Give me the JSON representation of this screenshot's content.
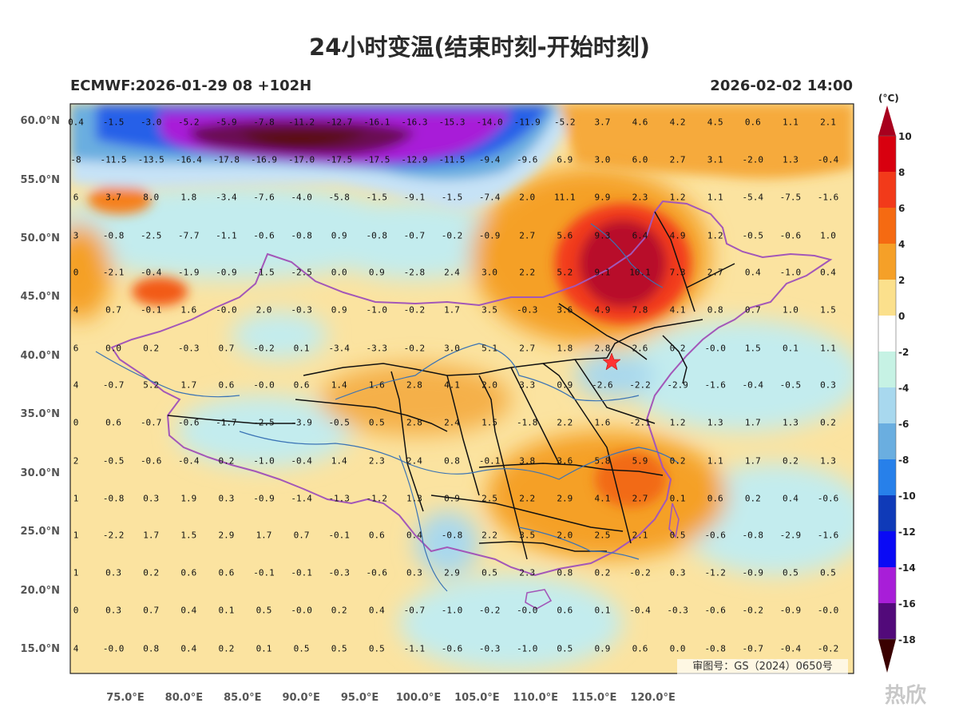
{
  "title": "24小时变温(结束时刻-开始时刻)",
  "subtitle_left": "ECMWF:2026-01-29 08 +102H",
  "subtitle_right": "2026-02-02 14:00",
  "unit": "(°C)",
  "approval": "审图号：GS（2024）0650号",
  "watermark": "热欣",
  "colors": {
    "dark_red": "#5a0a0a",
    "red": "#e4141e",
    "orange": "#f5a028",
    "yellow": "#fae39a",
    "cyan": "#c6f2e4",
    "light_blue": "#a8d8ee",
    "blue": "#2266e0",
    "purple": "#a81ed8",
    "border_purple": "#a357b8",
    "province_black": "#111111",
    "river": "#3a73b5"
  },
  "lat_labels": [
    "60.0°N",
    "55.0°N",
    "50.0°N",
    "45.0°N",
    "40.0°N",
    "35.0°N",
    "30.0°N",
    "25.0°N",
    "20.0°N",
    "15.0°N"
  ],
  "lon_labels": [
    "75.0°E",
    "80.0°E",
    "85.0°E",
    "90.0°E",
    "95.0°E",
    "100.0°E",
    "105.0°E",
    "110.0°E",
    "115.0°E",
    "120.0°E"
  ],
  "colorbar": {
    "levels": [
      "10",
      "8",
      "6",
      "4",
      "2",
      "0",
      "-2",
      "-4",
      "-6",
      "-8",
      "-10",
      "-12",
      "-14",
      "-16",
      "-18"
    ],
    "colors": [
      "#a8001e",
      "#d8000f",
      "#f23a1a",
      "#f56a12",
      "#f5a028",
      "#fbe08c",
      "#ffffff",
      "#c6f2e4",
      "#a8d8ee",
      "#6aaee0",
      "#2780ea",
      "#0f3ab8",
      "#0a0af5",
      "#a81ed8",
      "#520a7a",
      "#7a0a0a"
    ]
  },
  "grid_rows": [
    {
      "lat": "60.0",
      "values": [
        "0.4",
        "-1.5",
        "-3.0",
        "-5.2",
        "-5.9",
        "-7.8",
        "-11.2",
        "-12.7",
        "-16.1",
        "-16.3",
        "-15.3",
        "-14.0",
        "-11.9",
        "-5.2",
        "3.7",
        "4.6",
        "4.2",
        "4.5",
        "0.6",
        "1.1",
        "2.1"
      ]
    },
    {
      "lat": "57.5",
      "values": [
        "-8",
        "-11.5",
        "-13.5",
        "-16.4",
        "-17.8",
        "-16.9",
        "-17.0",
        "-17.5",
        "-17.5",
        "-12.9",
        "-11.5",
        "-9.4",
        "-9.6",
        "6.9",
        "3.0",
        "6.0",
        "2.7",
        "3.1",
        "-2.0",
        "1.3",
        "-0.4"
      ]
    },
    {
      "lat": "55.0",
      "values": [
        "6",
        "3.7",
        "8.0",
        "1.8",
        "-3.4",
        "-7.6",
        "-4.0",
        "-5.8",
        "-1.5",
        "-9.1",
        "-1.5",
        "-7.4",
        "2.0",
        "11.1",
        "9.9",
        "2.3",
        "1.2",
        "1.1",
        "-5.4",
        "-7.5",
        "-1.6"
      ]
    },
    {
      "lat": "50.0",
      "values": [
        "3",
        "-0.8",
        "-2.5",
        "-7.7",
        "-1.1",
        "-0.6",
        "-0.8",
        "0.9",
        "-0.8",
        "-0.7",
        "-0.2",
        "-0.9",
        "2.7",
        "5.6",
        "9.3",
        "6.4",
        "4.9",
        "1.2",
        "-0.5",
        "-0.6",
        "1.0"
      ]
    },
    {
      "lat": "47.5",
      "values": [
        "0",
        "-2.1",
        "-0.4",
        "-1.9",
        "-0.9",
        "-1.5",
        "-2.5",
        "0.0",
        "0.9",
        "-2.8",
        "2.4",
        "3.0",
        "2.2",
        "5.2",
        "9.1",
        "10.1",
        "7.3",
        "2.7",
        "0.4",
        "-1.0",
        "0.4"
      ]
    },
    {
      "lat": "45.0",
      "values": [
        "4",
        "0.7",
        "-0.1",
        "1.6",
        "-0.0",
        "2.0",
        "-0.3",
        "0.9",
        "-1.0",
        "-0.2",
        "1.7",
        "3.5",
        "-0.3",
        "3.6",
        "4.9",
        "7.8",
        "4.1",
        "0.8",
        "0.7",
        "1.0",
        "1.5"
      ]
    },
    {
      "lat": "42.5",
      "values": [
        "6",
        "0.0",
        "0.2",
        "-0.3",
        "0.7",
        "-0.2",
        "0.1",
        "-3.4",
        "-3.3",
        "-0.2",
        "3.0",
        "5.1",
        "2.7",
        "1.8",
        "2.8",
        "2.6",
        "0.2",
        "-0.0",
        "1.5",
        "0.1",
        "1.1"
      ]
    },
    {
      "lat": "40.0",
      "values": [
        "4",
        "-0.7",
        "5.2",
        "1.7",
        "0.6",
        "-0.0",
        "0.6",
        "1.4",
        "1.6",
        "2.8",
        "4.1",
        "2.0",
        "3.3",
        "0.9",
        "-2.6",
        "-2.2",
        "-2.9",
        "-1.6",
        "-0.4",
        "-0.5",
        "0.3"
      ]
    },
    {
      "lat": "35.0",
      "values": [
        "0",
        "0.6",
        "-0.7",
        "-0.6",
        "-1.7",
        "-2.5",
        "-3.9",
        "-0.5",
        "0.5",
        "2.8",
        "2.4",
        "1.5",
        "-1.8",
        "2.2",
        "1.6",
        "-2.1",
        "1.2",
        "1.3",
        "1.7",
        "1.3",
        "0.2"
      ]
    },
    {
      "lat": "32.5",
      "values": [
        "2",
        "-0.5",
        "-0.6",
        "-0.4",
        "0.2",
        "-1.0",
        "-0.4",
        "1.4",
        "2.3",
        "2.4",
        "0.8",
        "-0.1",
        "3.8",
        "3.6",
        "5.8",
        "5.9",
        "0.2",
        "1.1",
        "1.7",
        "0.2",
        "1.3"
      ]
    },
    {
      "lat": "30.0",
      "values": [
        "1",
        "-0.8",
        "0.3",
        "1.9",
        "0.3",
        "-0.9",
        "-1.4",
        "-1.3",
        "-1.2",
        "1.3",
        "0.9",
        "2.5",
        "2.2",
        "2.9",
        "4.1",
        "2.7",
        "0.1",
        "0.6",
        "0.2",
        "0.4",
        "-0.6"
      ]
    },
    {
      "lat": "25.0",
      "values": [
        "1",
        "-2.2",
        "1.7",
        "1.5",
        "2.9",
        "1.7",
        "0.7",
        "-0.1",
        "0.6",
        "0.4",
        "-0.8",
        "2.2",
        "3.5",
        "2.0",
        "2.5",
        "2.1",
        "0.5",
        "-0.6",
        "-0.8",
        "-2.9",
        "-1.6"
      ]
    },
    {
      "lat": "22.5",
      "values": [
        "1",
        "0.3",
        "0.2",
        "0.6",
        "0.6",
        "-0.1",
        "-0.1",
        "-0.3",
        "-0.6",
        "0.3",
        "2.9",
        "0.5",
        "2.3",
        "0.8",
        "0.2",
        "-0.2",
        "0.3",
        "-1.2",
        "-0.9",
        "0.5",
        "0.5"
      ]
    },
    {
      "lat": "20.0",
      "values": [
        "0",
        "0.3",
        "0.7",
        "0.4",
        "0.1",
        "0.5",
        "-0.0",
        "0.2",
        "0.4",
        "-0.7",
        "-1.0",
        "-0.2",
        "-0.0",
        "0.6",
        "0.1",
        "-0.4",
        "-0.3",
        "-0.6",
        "-0.2",
        "-0.9",
        "-0.0"
      ]
    },
    {
      "lat": "15.0",
      "values": [
        "4",
        "-0.0",
        "0.8",
        "0.4",
        "0.2",
        "0.1",
        "0.5",
        "0.5",
        "0.5",
        "-1.1",
        "-0.6",
        "-0.3",
        "-1.0",
        "0.5",
        "0.9",
        "0.6",
        "0.0",
        "-0.8",
        "-0.7",
        "-0.4",
        "-0.2"
      ]
    }
  ]
}
